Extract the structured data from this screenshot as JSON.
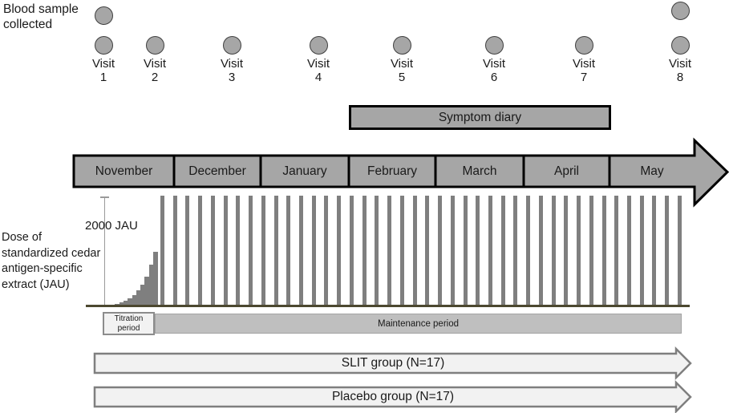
{
  "blood_sample": {
    "label_lines": [
      "Blood sample",
      "collected"
    ],
    "collected_at_visits": [
      1,
      8
    ]
  },
  "visits": {
    "label": "Visit",
    "numbers": [
      "1",
      "2",
      "3",
      "4",
      "5",
      "6",
      "7",
      "8"
    ]
  },
  "symptom_diary_label": "Symptom diary",
  "months": [
    "November",
    "December",
    "January",
    "February",
    "March",
    "April",
    "May"
  ],
  "dose_section": {
    "axis_label": "2000 JAU",
    "side_label_lines": [
      "Dose of",
      "standardized cedar",
      "antigen-specific",
      "extract (JAU)"
    ]
  },
  "periods": {
    "titration_lines": [
      "Titration",
      "period"
    ],
    "maintenance_label": "Maintenance period"
  },
  "groups": [
    {
      "label": "SLIT group (N=17)"
    },
    {
      "label": "Placebo group (N=17)"
    }
  ],
  "colors": {
    "shape_gray": "#a6a6a6",
    "dose_bar_gray": "#7f7f7f",
    "baseline_olive": "#4c4830",
    "maintenance_bar_gray": "#bfbfbf",
    "titration_box_fill": "#f2f2f2",
    "group_arrow_fill": "#f2f2f2",
    "group_arrow_border": "#7f7f7f",
    "outline_black": "#000000"
  },
  "chart_data": {
    "type": "bar",
    "title": "Dose of standardized cedar antigen-specific extract (JAU) over study period",
    "ylabel": "Dose (JAU)",
    "ylim": [
      0,
      2000
    ],
    "reference_level": {
      "value": 2000,
      "label": "2000 JAU"
    },
    "phases": [
      {
        "name": "Titration period",
        "timing": "November",
        "doses_jau": [
          15,
          30,
          60,
          90,
          130,
          190,
          275,
          375,
          520,
          740,
          985
        ]
      },
      {
        "name": "Maintenance period",
        "timing": "November through May",
        "dose_jau": 2000,
        "bar_count": 42
      }
    ],
    "x_axis_months": [
      "November",
      "December",
      "January",
      "February",
      "March",
      "April",
      "May"
    ],
    "grid": false,
    "legend": false
  }
}
